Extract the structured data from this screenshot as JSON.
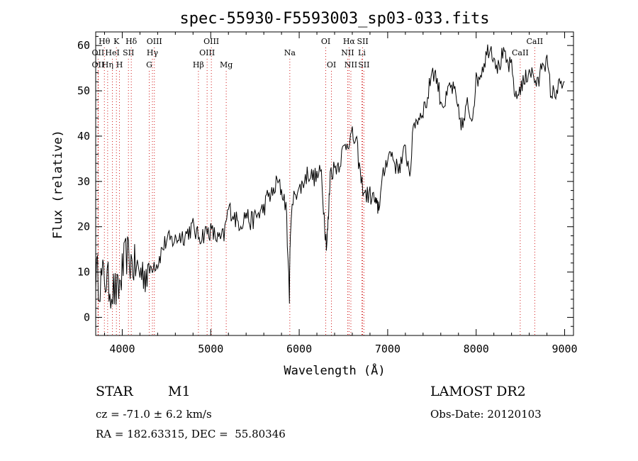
{
  "chart_data": {
    "type": "line",
    "title": "spec-55930-F5593003_sp03-033.fits",
    "xlabel": "Wavelength (Å)",
    "ylabel": "Flux (relative)",
    "xlim": [
      3700,
      9100
    ],
    "ylim": [
      -4,
      63
    ],
    "xticks": [
      4000,
      5000,
      6000,
      7000,
      8000,
      9000
    ],
    "yticks": [
      0,
      10,
      20,
      30,
      40,
      50,
      60
    ],
    "grid": false,
    "series": [
      {
        "x": [
          3700,
          3750,
          3800,
          3850,
          3900,
          3950,
          4000,
          4050,
          4100,
          4150,
          4200,
          4250,
          4300,
          4350,
          4400,
          4450,
          4500,
          4550,
          4600,
          4650,
          4700,
          4750,
          4800,
          4850,
          4900,
          4950,
          5000,
          5050,
          5100,
          5150,
          5200,
          5250,
          5300,
          5350,
          5400,
          5450,
          5500,
          5550,
          5600,
          5650,
          5700,
          5750,
          5800,
          5850,
          5890,
          5900,
          5950,
          6000,
          6050,
          6100,
          6150,
          6200,
          6250,
          6290,
          6310,
          6330,
          6350,
          6400,
          6450,
          6500,
          6550,
          6600,
          6650,
          6700,
          6750,
          6800,
          6850,
          6880,
          6900,
          6950,
          7000,
          7050,
          7100,
          7150,
          7200,
          7250,
          7300,
          7350,
          7400,
          7450,
          7500,
          7550,
          7600,
          7650,
          7700,
          7750,
          7800,
          7850,
          7900,
          7950,
          8000,
          8050,
          8100,
          8150,
          8200,
          8250,
          8300,
          8350,
          8400,
          8450,
          8500,
          8550,
          8600,
          8650,
          8700,
          8750,
          8800,
          8850,
          8900,
          8950,
          9000
        ],
        "y": [
          10,
          8,
          9,
          7,
          6,
          5,
          10,
          14,
          12,
          11,
          10,
          10,
          10,
          12,
          12,
          15,
          17,
          17,
          17,
          18,
          18,
          19,
          20,
          18,
          18,
          19,
          19,
          18,
          17,
          18,
          24,
          23,
          21,
          21,
          23,
          21,
          22,
          23,
          24,
          27,
          27,
          30,
          28,
          25,
          5,
          20,
          28,
          28,
          30,
          32,
          31,
          31,
          32,
          20,
          16,
          22,
          32,
          33,
          34,
          37,
          39,
          40,
          38,
          30,
          27,
          27,
          26,
          24,
          25,
          31,
          36,
          36,
          33,
          34,
          37,
          32,
          43,
          44,
          46,
          48,
          55,
          53,
          48,
          47,
          51,
          50,
          45,
          42,
          47,
          44,
          52,
          54,
          57,
          60,
          58,
          55,
          58,
          56,
          55,
          48,
          51,
          52,
          55,
          53,
          51,
          57,
          56,
          49,
          50,
          51,
          52
        ]
      }
    ],
    "lines": [
      {
        "label": "Hθ",
        "x": 3798,
        "row": 0
      },
      {
        "label": "OII",
        "x": 3727,
        "row": 1
      },
      {
        "label": "OII",
        "x": 3727,
        "row": 2
      },
      {
        "label": "K",
        "x": 3934,
        "row": 0
      },
      {
        "label": "HeI",
        "x": 3889,
        "row": 1
      },
      {
        "label": "Hη",
        "x": 3835,
        "row": 2
      },
      {
        "label": "H",
        "x": 3969,
        "row": 2
      },
      {
        "label": "SII",
        "x": 4070,
        "row": 1
      },
      {
        "label": "Hδ",
        "x": 4102,
        "row": 0
      },
      {
        "label": "OIII",
        "x": 4363,
        "row": 0
      },
      {
        "label": "Hγ",
        "x": 4341,
        "row": 1
      },
      {
        "label": "G",
        "x": 4305,
        "row": 2
      },
      {
        "label": "Hβ",
        "x": 4861,
        "row": 2
      },
      {
        "label": "OIII",
        "x": 5007,
        "row": 0
      },
      {
        "label": "OIII",
        "x": 4959,
        "row": 1
      },
      {
        "label": "Mg",
        "x": 5175,
        "row": 2
      },
      {
        "label": "Na",
        "x": 5894,
        "row": 1
      },
      {
        "label": "OI",
        "x": 6300,
        "row": 0
      },
      {
        "label": "OI",
        "x": 6364,
        "row": 2
      },
      {
        "label": "Hα",
        "x": 6563,
        "row": 0
      },
      {
        "label": "NII",
        "x": 6548,
        "row": 1
      },
      {
        "label": "NII",
        "x": 6584,
        "row": 2
      },
      {
        "label": "SII",
        "x": 6717,
        "row": 0
      },
      {
        "label": "Li",
        "x": 6708,
        "row": 1
      },
      {
        "label": "SII",
        "x": 6731,
        "row": 2
      },
      {
        "label": "CaII",
        "x": 8662,
        "row": 0
      },
      {
        "label": "CaII",
        "x": 8498,
        "row": 1
      }
    ]
  },
  "info": {
    "object_class": "STAR",
    "subclass": "M1",
    "redshift": "cz = -71.0 ± 6.2 km/s",
    "coords": "RA = 182.63315, DEC =  55.80346",
    "survey": "LAMOST DR2",
    "obs_date": "Obs-Date: 20120103"
  }
}
